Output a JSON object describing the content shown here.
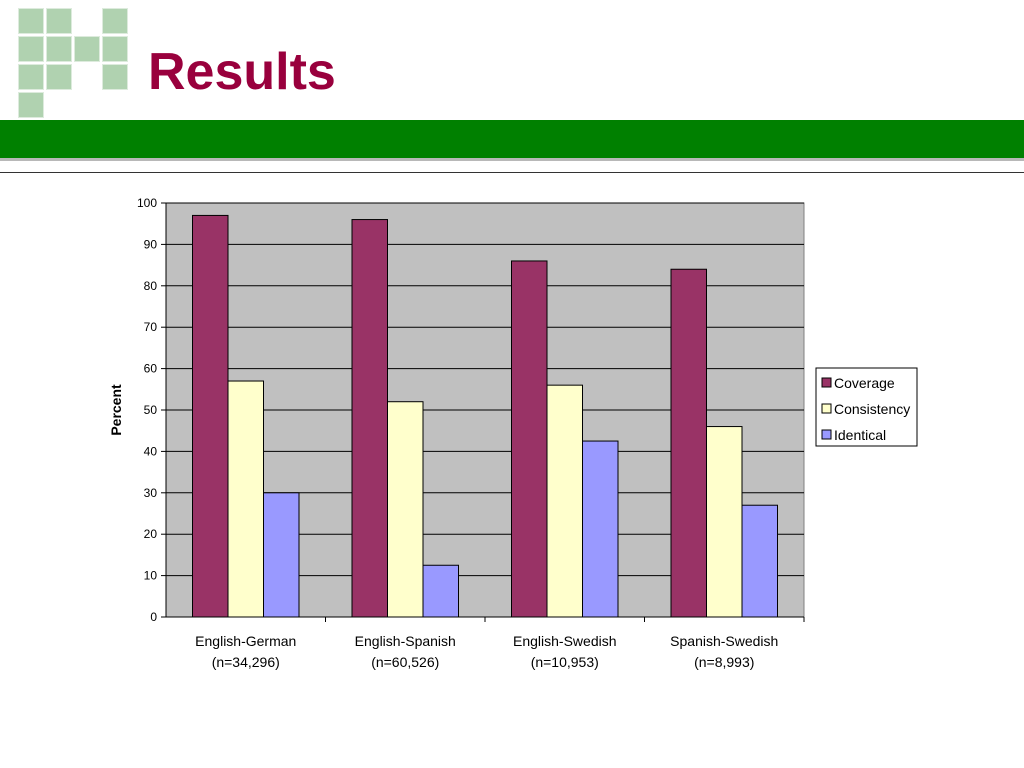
{
  "slide": {
    "title": "Results",
    "colors": {
      "title": "#99003d",
      "band": "#008000",
      "logo": "#8fbf8f"
    }
  },
  "chart_data": {
    "type": "bar",
    "categories": [
      [
        "English-German",
        "(n=34,296)"
      ],
      [
        "English-Spanish",
        "(n=60,526)"
      ],
      [
        "English-Swedish",
        "(n=10,953)"
      ],
      [
        "Spanish-Swedish",
        "(n=8,993)"
      ]
    ],
    "series": [
      {
        "name": "Coverage",
        "color": "#993366",
        "values": [
          97,
          96,
          86,
          84
        ]
      },
      {
        "name": "Consistency",
        "color": "#ffffcc",
        "values": [
          57,
          52,
          56,
          46
        ]
      },
      {
        "name": "Identical",
        "color": "#9999ff",
        "values": [
          30,
          12.5,
          42.5,
          27
        ]
      }
    ],
    "ylabel": "Percent",
    "ylim": [
      0,
      100
    ],
    "yticks": [
      0,
      10,
      20,
      30,
      40,
      50,
      60,
      70,
      80,
      90,
      100
    ],
    "grid": true,
    "plot_background": "#c0c0c0",
    "legend_position": "right"
  }
}
